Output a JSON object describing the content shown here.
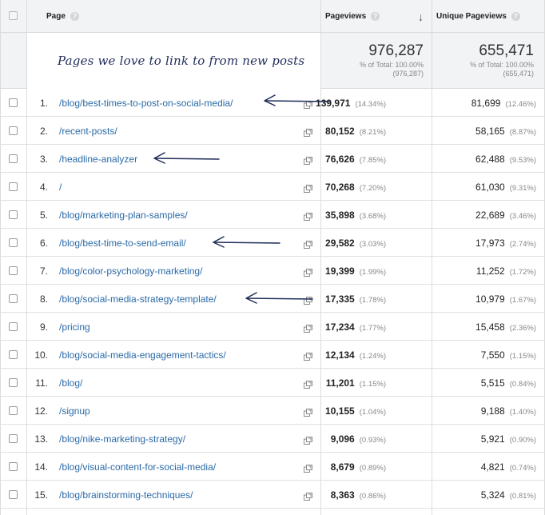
{
  "header": {
    "page_label": "Page",
    "pageviews_label": "Pageviews",
    "unique_label": "Unique Pageviews",
    "help_glyph": "?",
    "sort_glyph": "↓"
  },
  "note": "Pages we love to link to from new posts",
  "totals": {
    "pageviews": {
      "value": "976,287",
      "pct": "% of Total: 100.00%",
      "abs": "(976,287)"
    },
    "unique": {
      "value": "655,471",
      "pct": "% of Total: 100.00%",
      "abs": "(655,471)"
    }
  },
  "rows": [
    {
      "idx": "1.",
      "page": "/blog/best-times-to-post-on-social-media/",
      "pv": "139,971",
      "pv_pct": "(14.34%)",
      "uv": "81,699",
      "uv_pct": "(12.46%)"
    },
    {
      "idx": "2.",
      "page": "/recent-posts/",
      "pv": "80,152",
      "pv_pct": "(8.21%)",
      "uv": "58,165",
      "uv_pct": "(8.87%)"
    },
    {
      "idx": "3.",
      "page": "/headline-analyzer",
      "pv": "76,626",
      "pv_pct": "(7.85%)",
      "uv": "62,488",
      "uv_pct": "(9.53%)"
    },
    {
      "idx": "4.",
      "page": "/",
      "pv": "70,268",
      "pv_pct": "(7.20%)",
      "uv": "61,030",
      "uv_pct": "(9.31%)"
    },
    {
      "idx": "5.",
      "page": "/blog/marketing-plan-samples/",
      "pv": "35,898",
      "pv_pct": "(3.68%)",
      "uv": "22,689",
      "uv_pct": "(3.46%)"
    },
    {
      "idx": "6.",
      "page": "/blog/best-time-to-send-email/",
      "pv": "29,582",
      "pv_pct": "(3.03%)",
      "uv": "17,973",
      "uv_pct": "(2.74%)"
    },
    {
      "idx": "7.",
      "page": "/blog/color-psychology-marketing/",
      "pv": "19,399",
      "pv_pct": "(1.99%)",
      "uv": "11,252",
      "uv_pct": "(1.72%)"
    },
    {
      "idx": "8.",
      "page": "/blog/social-media-strategy-template/",
      "pv": "17,335",
      "pv_pct": "(1.78%)",
      "uv": "10,979",
      "uv_pct": "(1.67%)"
    },
    {
      "idx": "9.",
      "page": "/pricing",
      "pv": "17,234",
      "pv_pct": "(1.77%)",
      "uv": "15,458",
      "uv_pct": "(2.36%)"
    },
    {
      "idx": "10.",
      "page": "/blog/social-media-engagement-tactics/",
      "pv": "12,134",
      "pv_pct": "(1.24%)",
      "uv": "7,550",
      "uv_pct": "(1.15%)"
    },
    {
      "idx": "11.",
      "page": "/blog/",
      "pv": "11,201",
      "pv_pct": "(1.15%)",
      "uv": "5,515",
      "uv_pct": "(0.84%)"
    },
    {
      "idx": "12.",
      "page": "/signup",
      "pv": "10,155",
      "pv_pct": "(1.04%)",
      "uv": "9,188",
      "uv_pct": "(1.40%)"
    },
    {
      "idx": "13.",
      "page": "/blog/nike-marketing-strategy/",
      "pv": "9,096",
      "pv_pct": "(0.93%)",
      "uv": "5,921",
      "uv_pct": "(0.90%)"
    },
    {
      "idx": "14.",
      "page": "/blog/visual-content-for-social-media/",
      "pv": "8,679",
      "pv_pct": "(0.89%)",
      "uv": "4,821",
      "uv_pct": "(0.74%)"
    },
    {
      "idx": "15.",
      "page": "/blog/brainstorming-techniques/",
      "pv": "8,363",
      "pv_pct": "(0.86%)",
      "uv": "5,324",
      "uv_pct": "(0.81%)"
    }
  ],
  "icons": {
    "open_link": "open-in-new-window-icon",
    "annotation": "hand-drawn-arrow-icon"
  },
  "colors": {
    "link": "#2b6aa7",
    "annotation": "#1f2b5a",
    "header_bg": "#f1f3f4"
  }
}
